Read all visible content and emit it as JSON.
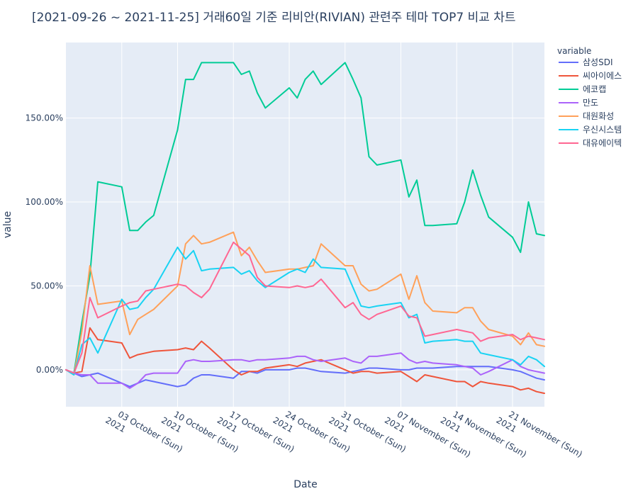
{
  "chart_data": {
    "type": "line",
    "title": "[2021-09-26 ~ 2021-11-25] 거래60일 기준 리비안(RIVIAN) 관련주 테마 TOP7 비교 차트",
    "xlabel": "Date",
    "ylabel": "value",
    "legend_title": "variable",
    "legend_position": "top-right",
    "grid": true,
    "xlim": [
      0,
      60
    ],
    "ylim": [
      -22,
      195
    ],
    "x_ticks": [
      {
        "x": 7,
        "line1": "03 October (Sun)",
        "line2": "2021"
      },
      {
        "x": 14,
        "line1": "10 October (Sun)",
        "line2": "2021"
      },
      {
        "x": 21,
        "line1": "17 October (Sun)",
        "line2": "2021"
      },
      {
        "x": 28,
        "line1": "24 October (Sun)",
        "line2": "2021"
      },
      {
        "x": 35,
        "line1": "31 October (Sun)",
        "line2": "2021"
      },
      {
        "x": 42,
        "line1": "07 November (Sun)",
        "line2": "2021"
      },
      {
        "x": 49,
        "line1": "14 November (Sun)",
        "line2": "2021"
      },
      {
        "x": 56,
        "line1": "21 November (Sun)",
        "line2": "2021"
      }
    ],
    "y_ticks": [
      {
        "v": 0,
        "label": "0.00%"
      },
      {
        "v": 50,
        "label": "50.00%"
      },
      {
        "v": 100,
        "label": "100.00%"
      },
      {
        "v": 150,
        "label": "150.00%"
      }
    ],
    "x": [
      0,
      1,
      2,
      3,
      4,
      7,
      8,
      9,
      10,
      11,
      14,
      15,
      16,
      17,
      18,
      21,
      22,
      23,
      24,
      25,
      28,
      29,
      30,
      31,
      32,
      35,
      36,
      37,
      38,
      39,
      42,
      43,
      44,
      45,
      46,
      49,
      50,
      51,
      52,
      53,
      56,
      57,
      58,
      59,
      60
    ],
    "series": [
      {
        "name": "삼성SDI",
        "color": "#636efa",
        "values": [
          0,
          -2,
          -4,
          -3,
          -2,
          -8,
          -10,
          -8,
          -6,
          -7,
          -10,
          -9,
          -5,
          -3,
          -3,
          -5,
          -1,
          -1,
          -2,
          0,
          0,
          1,
          1,
          0,
          -1,
          -2,
          -1,
          0,
          1,
          1,
          0,
          0,
          1,
          1,
          1,
          2,
          2,
          2,
          2,
          2,
          0,
          -1,
          -3,
          -5,
          -6
        ]
      },
      {
        "name": "씨아이에스",
        "color": "#ef553b",
        "values": [
          0,
          -2,
          -1,
          25,
          18,
          16,
          7,
          9,
          10,
          11,
          12,
          13,
          12,
          17,
          13,
          0,
          -3,
          -1,
          -1,
          1,
          3,
          2,
          4,
          5,
          6,
          0,
          -2,
          -1,
          -1,
          -2,
          -1,
          -4,
          -7,
          -3,
          -4,
          -7,
          -7,
          -10,
          -7,
          -8,
          -10,
          -12,
          -11,
          -13,
          -14
        ]
      },
      {
        "name": "에코캡",
        "color": "#00cc96",
        "values": [
          0,
          -2,
          28,
          56,
          112,
          109,
          83,
          83,
          88,
          92,
          143,
          173,
          173,
          183,
          183,
          183,
          176,
          178,
          165,
          156,
          168,
          162,
          173,
          178,
          170,
          183,
          173,
          162,
          127,
          122,
          125,
          103,
          113,
          86,
          86,
          87,
          100,
          119,
          104,
          91,
          79,
          70,
          100,
          81,
          80
        ]
      },
      {
        "name": "만도",
        "color": "#ab63fa",
        "values": [
          0,
          -2,
          -3,
          -3,
          -8,
          -8,
          -11,
          -8,
          -3,
          -2,
          -2,
          5,
          6,
          5,
          5,
          6,
          6,
          5,
          6,
          6,
          7,
          8,
          8,
          6,
          5,
          7,
          5,
          4,
          8,
          8,
          10,
          6,
          4,
          5,
          4,
          3,
          2,
          1,
          -3,
          -1,
          6,
          2,
          0,
          -1,
          -2
        ]
      },
      {
        "name": "대원화성",
        "color": "#ffa15a",
        "values": [
          0,
          -3,
          23,
          62,
          39,
          41,
          21,
          30,
          33,
          36,
          50,
          75,
          80,
          75,
          76,
          82,
          68,
          73,
          65,
          58,
          60,
          60,
          61,
          62,
          75,
          62,
          62,
          51,
          47,
          48,
          57,
          42,
          56,
          40,
          35,
          34,
          37,
          37,
          29,
          24,
          20,
          15,
          22,
          15,
          14
        ]
      },
      {
        "name": "우신시스템",
        "color": "#19d3f3",
        "values": [
          0,
          -3,
          15,
          19,
          10,
          42,
          36,
          37,
          43,
          48,
          73,
          66,
          71,
          59,
          60,
          61,
          57,
          59,
          53,
          49,
          58,
          60,
          58,
          66,
          61,
          60,
          49,
          38,
          37,
          38,
          40,
          31,
          33,
          16,
          17,
          18,
          17,
          17,
          10,
          9,
          6,
          3,
          8,
          6,
          2
        ]
      },
      {
        "name": "대유에이텍",
        "color": "#ff6692",
        "values": [
          0,
          -2,
          10,
          43,
          31,
          38,
          40,
          41,
          47,
          48,
          51,
          50,
          46,
          43,
          48,
          76,
          72,
          68,
          55,
          50,
          49,
          50,
          49,
          50,
          54,
          37,
          40,
          33,
          30,
          33,
          38,
          32,
          31,
          20,
          21,
          24,
          23,
          22,
          17,
          19,
          21,
          18,
          20,
          19,
          18
        ]
      }
    ]
  }
}
